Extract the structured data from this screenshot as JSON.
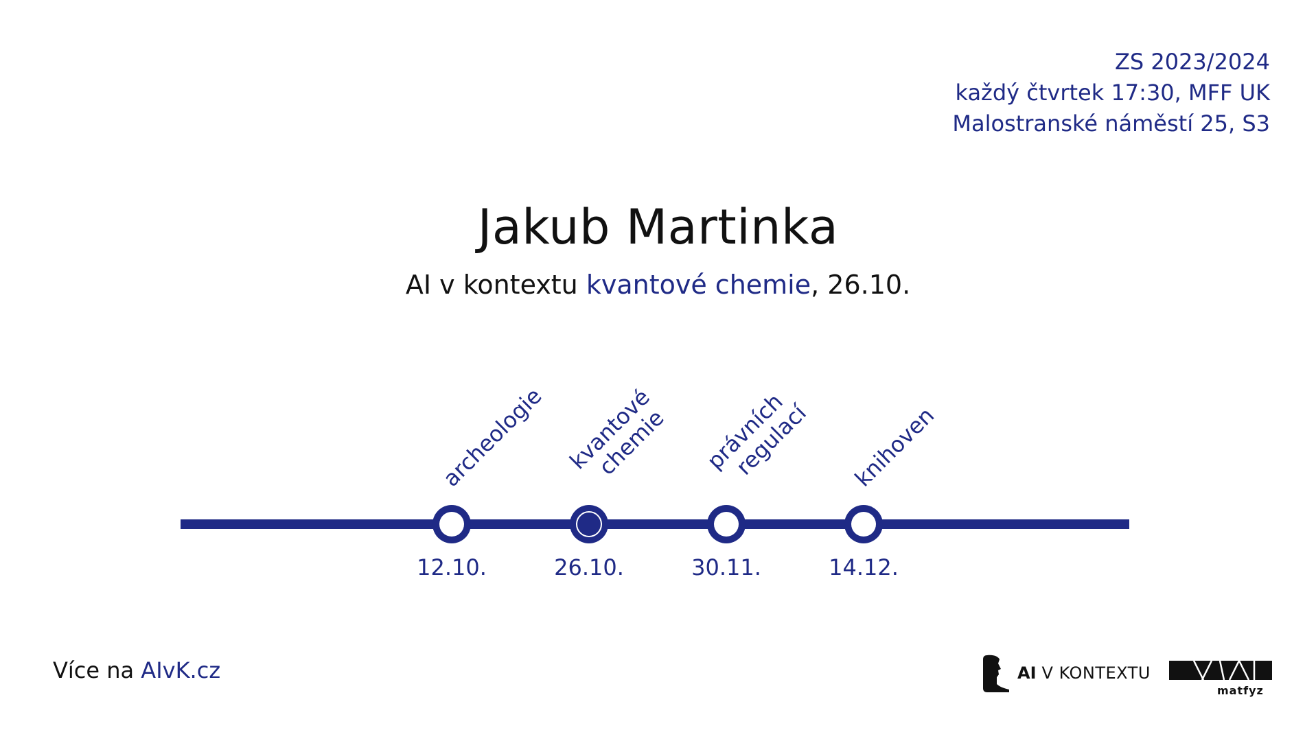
{
  "info": {
    "semester": "ZS 2023/2024",
    "schedule": "každý čtvrtek 17:30, MFF UK",
    "place": "Malostranské náměstí 25, S3"
  },
  "speaker": "Jakub Martinka",
  "talk": {
    "prefix": "AI v kontextu ",
    "topic": "kvantové chemie",
    "suffix": ", 26.10."
  },
  "timeline": [
    {
      "date": "12.10.",
      "topic_lines": [
        "archeologie"
      ],
      "current": false
    },
    {
      "date": "26.10.",
      "topic_lines": [
        "kvantové",
        "chemie"
      ],
      "current": true
    },
    {
      "date": "30.11.",
      "topic_lines": [
        "právních",
        "regulací"
      ],
      "current": false
    },
    {
      "date": "14.12.",
      "topic_lines": [
        "knihoven"
      ],
      "current": false
    }
  ],
  "footer": {
    "more_prefix": "Více na ",
    "more_link": "AIvK.cz",
    "logo_ai": "AI",
    "logo_context": "V KONTEXTU",
    "logo_matfyz": "matfyz"
  },
  "colors": {
    "accent": "#1f2a86",
    "text": "#111111",
    "background": "#ffffff"
  }
}
